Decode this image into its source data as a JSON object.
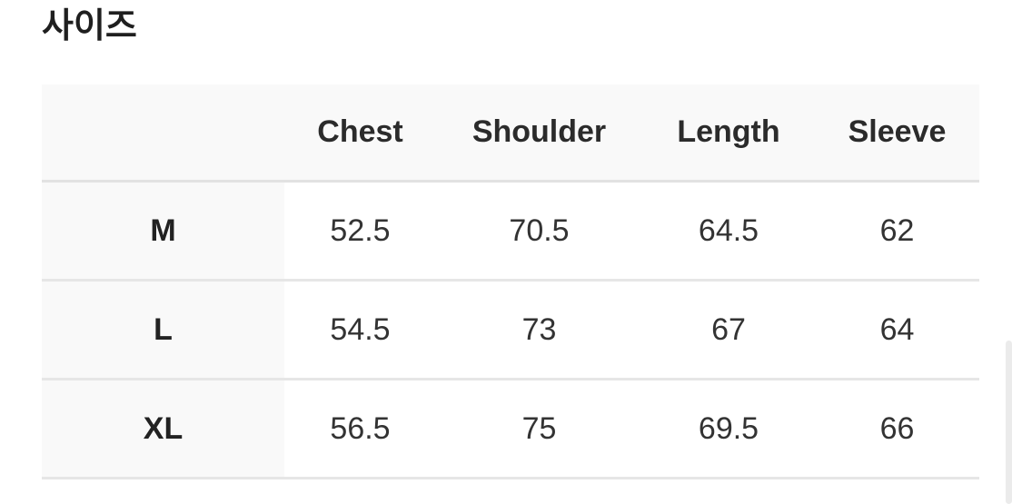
{
  "title": "사이즈",
  "table": {
    "columns": [
      "",
      "Chest",
      "Shoulder",
      "Length",
      "Sleeve"
    ],
    "rows": [
      {
        "size": "M",
        "values": [
          "52.5",
          "70.5",
          "64.5",
          "62"
        ]
      },
      {
        "size": "L",
        "values": [
          "54.5",
          "73",
          "67",
          "64"
        ]
      },
      {
        "size": "XL",
        "values": [
          "56.5",
          "75",
          "69.5",
          "66"
        ]
      }
    ]
  },
  "colors": {
    "header_bg": "#f9f9f9",
    "border": "#e2e2e2",
    "text": "#222222"
  }
}
